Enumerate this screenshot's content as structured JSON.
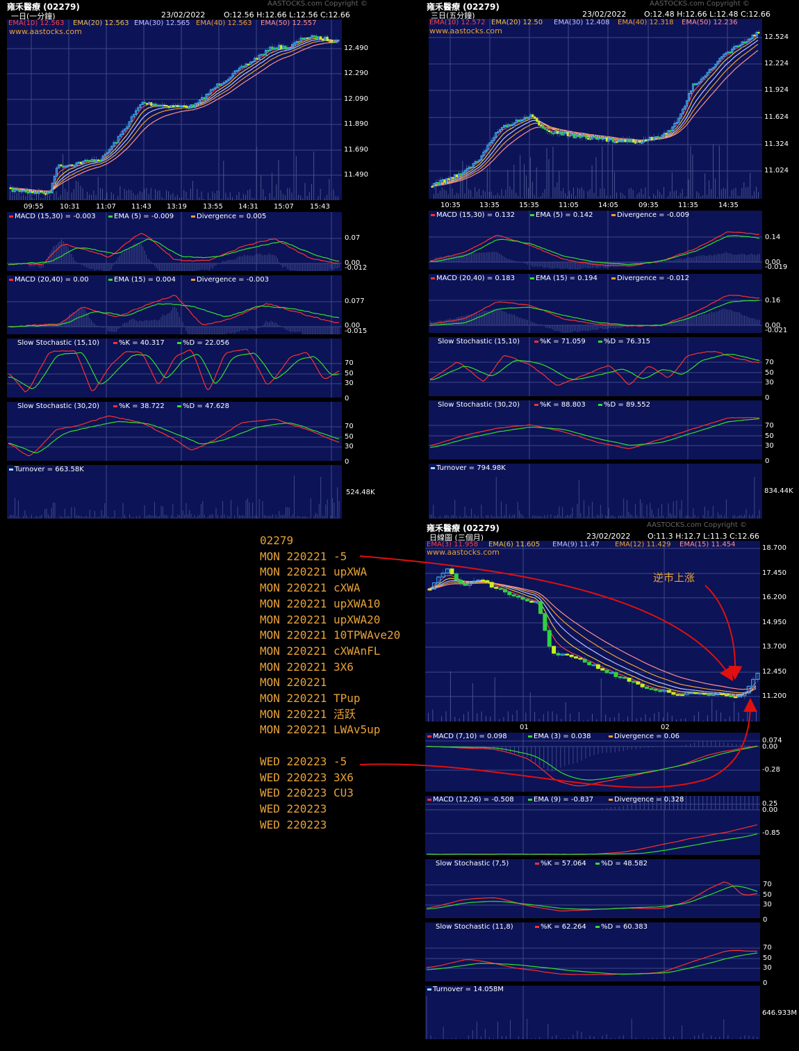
{
  "copyright": "AASTOCKS.com Copyright ©",
  "website": "www.aastocks.com",
  "charts": [
    {
      "id": "c1",
      "title": "雍禾醫療 (02279)",
      "period": "一日(一分鐘)",
      "date": "23/02/2022",
      "ohlc": "O:12.56  H:12.66  L:12.56  C:12.66",
      "ema": [
        "EMA(10) 12.563",
        "EMA(20) 12.563",
        "EMA(30) 12.565",
        "EMA(40) 12.563",
        "EMA(50) 12.557"
      ],
      "price_ticks": [
        "12.490",
        "12.290",
        "12.090",
        "11.890",
        "11.690",
        "11.490"
      ],
      "time_ticks": [
        "09:55",
        "10:31",
        "11:07",
        "11:43",
        "13:19",
        "13:55",
        "14:31",
        "15:07",
        "15:43"
      ],
      "macd1": {
        "label": "MACD (15,30) = -0.003",
        "ema": "EMA (5) = -0.009",
        "div": "Divergence = 0.005",
        "ticks": [
          "0.07",
          "0.00",
          "-0.012"
        ]
      },
      "macd2": {
        "label": "MACD (20,40) = 0.00",
        "ema": "EMA (15) = 0.004",
        "div": "Divergence = -0.003",
        "ticks": [
          "0.077",
          "0.00",
          "-0.015"
        ]
      },
      "sto1": {
        "label": "Slow Stochastic (15,10)",
        "k": "%K = 40.317",
        "d": "%D = 22.056",
        "ticks": [
          "70",
          "50",
          "30",
          "0"
        ]
      },
      "sto2": {
        "label": "Slow Stochastic (30,20)",
        "k": "%K = 38.722",
        "d": "%D = 47.628",
        "ticks": [
          "70",
          "50",
          "30",
          "0"
        ]
      },
      "turnover": {
        "label": "Turnover = 663.58K",
        "tick": "524.48K"
      }
    },
    {
      "id": "c2",
      "title": "雍禾醫療 (02279)",
      "period": "三日(五分鐘)",
      "date": "23/02/2022",
      "ohlc": "O:12.48  H:12.66  L:12.48  C:12.66",
      "ema": [
        "EMA(10) 12.572",
        "EMA(20) 12.50",
        "EMA(30) 12.408",
        "EMA(40) 12.318",
        "EMA(50) 12.236"
      ],
      "price_ticks": [
        "12.524",
        "12.224",
        "11.924",
        "11.624",
        "11.324",
        "11.024"
      ],
      "time_ticks": [
        "10:35",
        "13:35",
        "15:35",
        "11:05",
        "14:05",
        "09:35",
        "11:35",
        "14:35"
      ],
      "macd1": {
        "label": "MACD (15,30) = 0.132",
        "ema": "EMA (5) = 0.142",
        "div": "Divergence = -0.009",
        "ticks": [
          "0.14",
          "0.00",
          "-0.019"
        ]
      },
      "macd2": {
        "label": "MACD (20,40) = 0.183",
        "ema": "EMA (15) = 0.194",
        "div": "Divergence = -0.012",
        "ticks": [
          "0.16",
          "0.00",
          "-0.021"
        ]
      },
      "sto1": {
        "label": "Slow Stochastic (15,10)",
        "k": "%K = 71.059",
        "d": "%D = 76.315",
        "ticks": [
          "70",
          "50",
          "30",
          "0"
        ]
      },
      "sto2": {
        "label": "Slow Stochastic (30,20)",
        "k": "%K = 88.803",
        "d": "%D = 89.552",
        "ticks": [
          "70",
          "50",
          "30",
          "0"
        ]
      },
      "turnover": {
        "label": "Turnover = 794.98K",
        "tick": "834.44K"
      }
    },
    {
      "id": "c3",
      "title": "雍禾醫療 (02279)",
      "period": "日線圖 (三個月)",
      "date": "23/02/2022",
      "ohlc": "O:11.3  H:12.7  L:11.3  C:12.66",
      "ema": [
        "EMA(3) 11.958",
        "EMA(6) 11.605",
        "EMA(9) 11.47",
        "EMA(12) 11.429",
        "EMA(15) 11.454"
      ],
      "price_ticks": [
        "18.700",
        "17.450",
        "16.200",
        "14.950",
        "13.700",
        "12.450",
        "11.200"
      ],
      "time_ticks": [
        "01",
        "02"
      ],
      "macd1": {
        "label": "MACD (7,10) = 0.098",
        "ema": "EMA (3) = 0.038",
        "div": "Divergence = 0.06",
        "ticks": [
          "0.074",
          "0.00",
          "-0.28"
        ]
      },
      "macd2": {
        "label": "MACD (12,26) = -0.508",
        "ema": "EMA (9) = -0.837",
        "div": "Divergence = 0.328",
        "ticks": [
          "0.25",
          "0.00",
          "-0.85"
        ]
      },
      "sto1": {
        "label": "Slow Stochastic (7,5)",
        "k": "%K = 57.064",
        "d": "%D = 48.582",
        "ticks": [
          "70",
          "50",
          "30",
          "0"
        ]
      },
      "sto2": {
        "label": "Slow Stochastic (11,8)",
        "k": "%K = 62.264",
        "d": "%D = 60.383",
        "ticks": [
          "70",
          "50",
          "30",
          "0"
        ]
      },
      "turnover": {
        "label": "Turnover = 14.058M",
        "tick": "646.933M"
      }
    }
  ],
  "notes": [
    "02279",
    "MON 220221 -5",
    "MON 220221 upXWA",
    "MON 220221 cXWA",
    "MON 220221 upXWA10",
    "MON 220221 upXWA20",
    "MON 220221 10TPWAve20",
    "MON 220221 cXWAnFL",
    "MON 220221 3X6",
    "MON 220221",
    "MON 220221 TPup",
    "MON 220221 活跃",
    "MON 220221 LWAv5up",
    "",
    "WED 220223 -5",
    "WED 220223 3X6",
    "WED 220223 CU3",
    "WED 220223",
    "WED 220223"
  ],
  "annotation": "逆市上涨",
  "colors": {
    "plot_bg": "#0c1356",
    "grid": "#3e4a8a",
    "macd": "#ff3030",
    "ema": "#30e030",
    "divergence": "#f0a030",
    "k": "#ff3030",
    "d": "#30e030",
    "turnover": "#9fe0ff",
    "note": "#e8a238",
    "arrow": "#e01010"
  }
}
